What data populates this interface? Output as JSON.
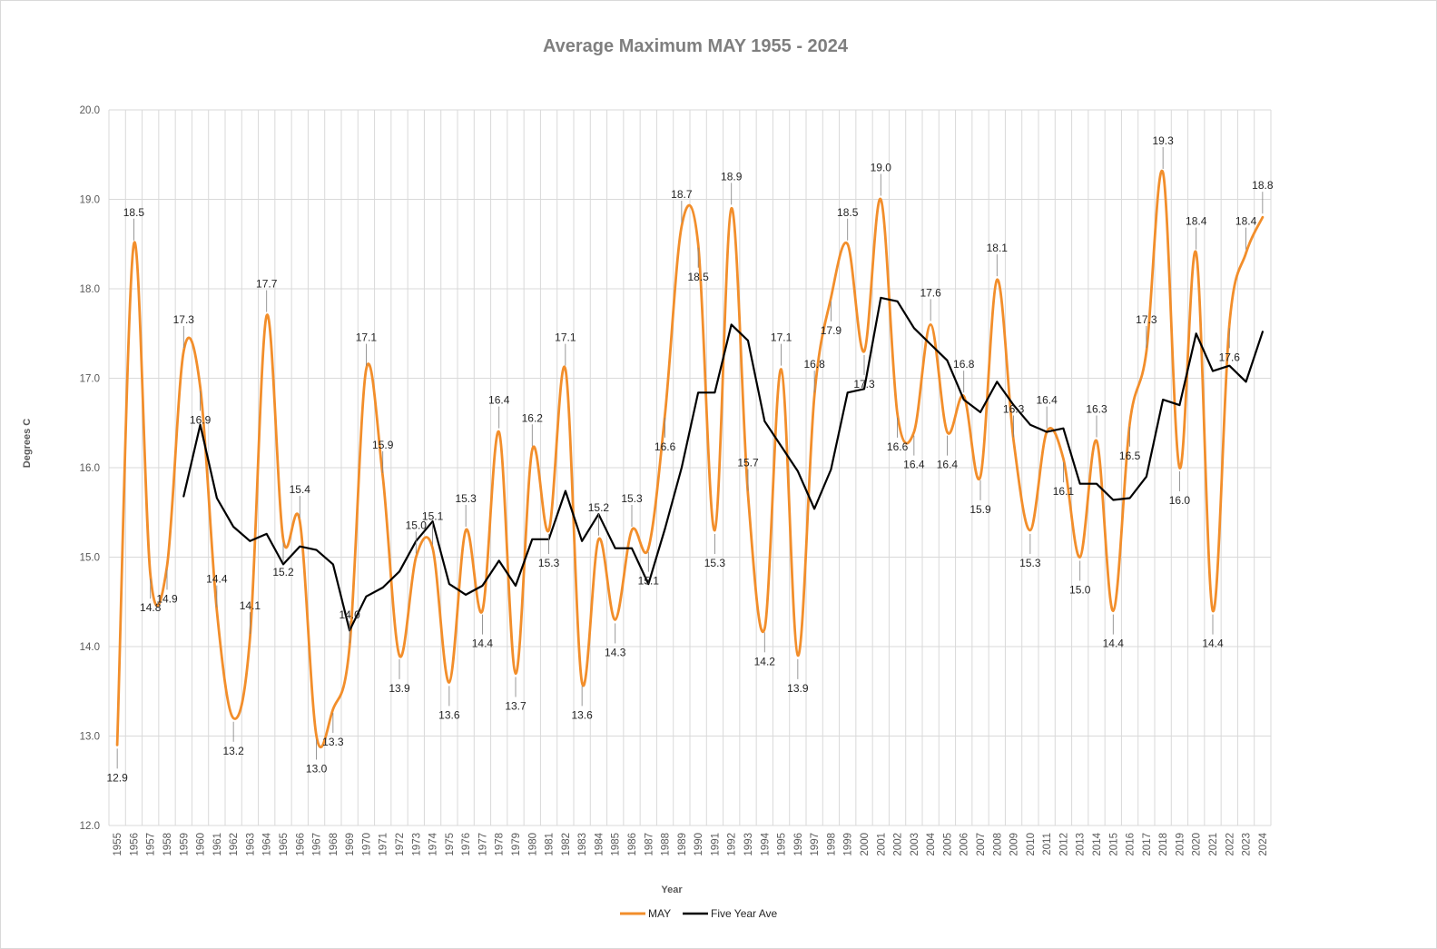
{
  "chart_data": {
    "type": "line",
    "title": "Average Maximum MAY 1955 - 2024",
    "xlabel": "Year",
    "ylabel": "Degrees C",
    "ylim": [
      12.0,
      20.0
    ],
    "ytick_step": 1.0,
    "yticks": [
      "12.0",
      "13.0",
      "14.0",
      "15.0",
      "16.0",
      "17.0",
      "18.0",
      "19.0",
      "20.0"
    ],
    "grid": true,
    "legend_position": "bottom",
    "x": [
      "1955",
      "1956",
      "1957",
      "1958",
      "1959",
      "1960",
      "1961",
      "1962",
      "1963",
      "1964",
      "1965",
      "1966",
      "1967",
      "1968",
      "1969",
      "1970",
      "1971",
      "1972",
      "1973",
      "1974",
      "1975",
      "1976",
      "1977",
      "1978",
      "1979",
      "1980",
      "1981",
      "1982",
      "1983",
      "1984",
      "1985",
      "1986",
      "1987",
      "1988",
      "1989",
      "1990",
      "1991",
      "1992",
      "1993",
      "1994",
      "1995",
      "1996",
      "1997",
      "1998",
      "1999",
      "2000",
      "2001",
      "2002",
      "2003",
      "2004",
      "2005",
      "2006",
      "2007",
      "2008",
      "2009",
      "2010",
      "2011",
      "2012",
      "2013",
      "2014",
      "2015",
      "2016",
      "2017",
      "2018",
      "2019",
      "2020",
      "2021",
      "2022",
      "2023",
      "2024"
    ],
    "series": [
      {
        "name": "MAY",
        "color": "#f28e2b",
        "smooth": true,
        "values": [
          12.9,
          18.5,
          14.8,
          14.9,
          17.3,
          16.9,
          14.4,
          13.2,
          14.1,
          17.7,
          15.2,
          15.4,
          13.0,
          13.3,
          14.0,
          17.1,
          15.9,
          13.9,
          15.0,
          15.1,
          13.6,
          15.3,
          14.4,
          16.4,
          13.7,
          16.2,
          15.3,
          17.1,
          13.6,
          15.2,
          14.3,
          15.3,
          15.1,
          16.6,
          18.7,
          18.5,
          15.3,
          18.9,
          15.7,
          14.2,
          17.1,
          13.9,
          16.8,
          17.9,
          18.5,
          17.3,
          19.0,
          16.6,
          16.4,
          17.6,
          16.4,
          16.8,
          15.9,
          18.1,
          16.3,
          15.3,
          16.4,
          16.1,
          15.0,
          16.3,
          14.4,
          16.5,
          17.3,
          19.3,
          16.0,
          18.4,
          14.4,
          17.6,
          18.4,
          18.8
        ]
      },
      {
        "name": "Five Year Ave",
        "color": "#000000",
        "smooth": false,
        "values": [
          null,
          null,
          null,
          null,
          15.68,
          16.48,
          15.66,
          15.34,
          15.18,
          15.26,
          14.92,
          15.12,
          15.08,
          14.92,
          14.18,
          14.56,
          14.66,
          14.84,
          15.18,
          15.4,
          14.7,
          14.58,
          14.68,
          14.96,
          14.68,
          15.2,
          15.2,
          15.74,
          15.18,
          15.48,
          15.1,
          15.1,
          14.7,
          15.32,
          16.0,
          16.84,
          16.84,
          17.6,
          17.42,
          16.52,
          16.24,
          15.96,
          15.54,
          15.98,
          16.84,
          16.88,
          17.9,
          17.86,
          17.56,
          17.38,
          17.2,
          16.76,
          16.62,
          16.96,
          16.7,
          16.48,
          16.4,
          16.44,
          15.82,
          15.82,
          15.64,
          15.66,
          15.9,
          16.76,
          16.7,
          17.5,
          17.08,
          17.14,
          16.96,
          17.52
        ]
      }
    ],
    "data_labels": [
      "12.9",
      "18.5",
      "14.8",
      "14.9",
      "17.3",
      "16.9",
      "14.4",
      "13.2",
      "14.1",
      "17.7",
      "15.2",
      "15.4",
      "13.0",
      "13.3",
      "14.0",
      "17.1",
      "15.9",
      "13.9",
      "15.0",
      "15.1",
      "13.6",
      "15.3",
      "14.4",
      "16.4",
      "13.7",
      "16.2",
      "15.3",
      "17.1",
      "13.6",
      "15.2",
      "14.3",
      "15.3",
      "15.1",
      "16.6",
      "18.7",
      "18.5",
      "15.3",
      "18.9",
      "15.7",
      "14.2",
      "17.1",
      "13.9",
      "16.8",
      "17.9",
      "18.5",
      "17.3",
      "19.0",
      "16.6",
      "16.4",
      "17.6",
      "16.4",
      "16.8",
      "15.9",
      "18.1",
      "16.3",
      "15.3",
      "16.4",
      "16.1",
      "15.0",
      "16.3",
      "14.4",
      "16.5",
      "17.3",
      "19.3",
      "16.0",
      "18.4",
      "14.4",
      "17.6",
      "18.4",
      "18.8"
    ]
  }
}
